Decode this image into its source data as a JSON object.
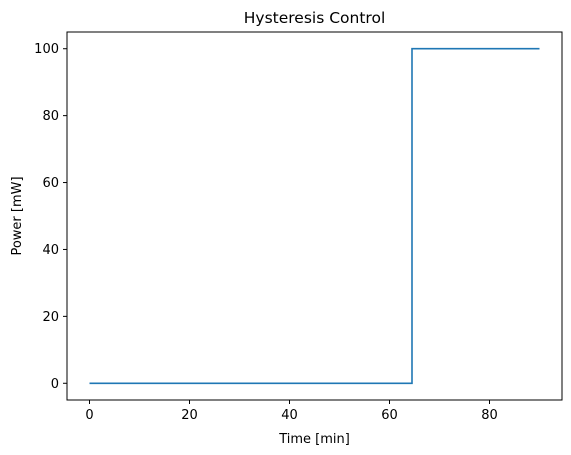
{
  "chart_data": {
    "type": "line",
    "title": "Hysteresis Control",
    "xlabel": "Time [min]",
    "ylabel": "Power [mW]",
    "xlim": [
      -4.5,
      94.5
    ],
    "ylim": [
      -5,
      105
    ],
    "xticks": [
      0,
      20,
      40,
      60,
      80
    ],
    "yticks": [
      0,
      20,
      40,
      60,
      80,
      100
    ],
    "grid": false,
    "series": [
      {
        "color": "#1f77b4",
        "x": [
          0,
          64.5,
          64.5,
          90
        ],
        "y": [
          0,
          0,
          100,
          100
        ]
      }
    ]
  }
}
